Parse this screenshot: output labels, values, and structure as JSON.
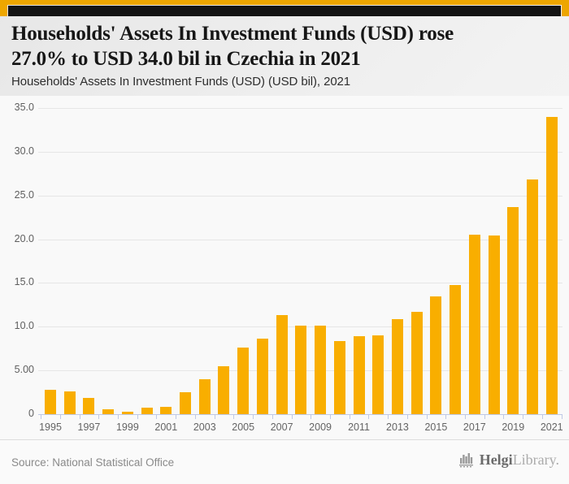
{
  "header": {
    "title_line1": "Households' Assets In Investment Funds (USD) rose",
    "title_line2": "27.0% to USD 34.0 bil in Czechia in 2021",
    "subtitle": "Households' Assets In Investment Funds (USD) (USD bil), 2021"
  },
  "chart_data": {
    "type": "bar",
    "title": "Households' Assets In Investment Funds (USD) (USD bil), 2021",
    "categories": [
      "1995",
      "1996",
      "1997",
      "1998",
      "1999",
      "2000",
      "2001",
      "2002",
      "2003",
      "2004",
      "2005",
      "2006",
      "2007",
      "2008",
      "2009",
      "2010",
      "2011",
      "2012",
      "2013",
      "2014",
      "2015",
      "2016",
      "2017",
      "2018",
      "2019",
      "2020",
      "2021"
    ],
    "values": [
      2.8,
      2.6,
      1.9,
      0.6,
      0.25,
      0.7,
      0.8,
      2.5,
      4.0,
      5.5,
      7.6,
      8.6,
      11.3,
      10.1,
      10.1,
      8.4,
      8.9,
      9.0,
      10.9,
      11.7,
      13.5,
      14.8,
      20.5,
      20.4,
      23.7,
      26.8,
      34.0
    ],
    "ylim": [
      0,
      35
    ],
    "y_tick_values": [
      0,
      5,
      10,
      15,
      20,
      25,
      30,
      35
    ],
    "y_tick_labels": [
      "0",
      "5.00",
      "10.0",
      "15.0",
      "20.0",
      "25.0",
      "30.0",
      "35.0"
    ],
    "x_shown_labels": [
      "1995",
      "1997",
      "1999",
      "2001",
      "2003",
      "2005",
      "2007",
      "2009",
      "2011",
      "2013",
      "2015",
      "2017",
      "2019",
      "2021"
    ],
    "grid": true,
    "legend": "none",
    "bar_color": "#f9ae00",
    "axis_color": "#bfc9e6",
    "xlabel": "",
    "ylabel": ""
  },
  "footer": {
    "source": "Source: National Statistical Office",
    "logo": {
      "brand_bold": "Helgi",
      "brand_light": "Library."
    }
  },
  "colors": {
    "brand_orange": "#eda600",
    "brand_black": "#141414",
    "chart_background": "#f9f9f9"
  }
}
